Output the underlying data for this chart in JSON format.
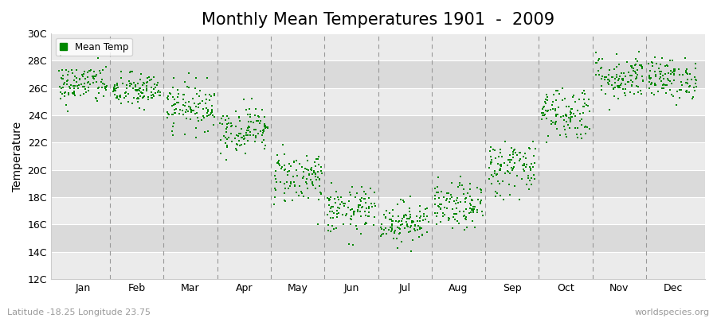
{
  "title": "Monthly Mean Temperatures 1901  -  2009",
  "ylabel": "Temperature",
  "subtitle_left": "Latitude -18.25 Longitude 23.75",
  "subtitle_right": "worldspecies.org",
  "ytick_labels": [
    "12C",
    "14C",
    "16C",
    "18C",
    "20C",
    "22C",
    "24C",
    "26C",
    "28C",
    "30C"
  ],
  "ytick_values": [
    12,
    14,
    16,
    18,
    20,
    22,
    24,
    26,
    28,
    30
  ],
  "ylim": [
    12,
    30
  ],
  "months": [
    "Jan",
    "Feb",
    "Mar",
    "Apr",
    "May",
    "Jun",
    "Jul",
    "Aug",
    "Sep",
    "Oct",
    "Nov",
    "Dec"
  ],
  "monthly_means": [
    26.3,
    25.8,
    24.7,
    23.0,
    19.5,
    17.0,
    16.2,
    17.3,
    20.2,
    24.2,
    26.8,
    26.7
  ],
  "monthly_stds": [
    0.75,
    0.65,
    0.85,
    0.85,
    1.0,
    0.85,
    0.75,
    0.85,
    1.05,
    1.0,
    0.85,
    0.75
  ],
  "n_years": 109,
  "dot_color": "#008800",
  "dot_size": 3,
  "background_color": "#ffffff",
  "plot_bg_light": "#ebebeb",
  "plot_bg_dark": "#dadada",
  "grid_line_color": "#ffffff",
  "dashed_line_color": "#999999",
  "legend_label": "Mean Temp",
  "title_fontsize": 15,
  "axis_label_fontsize": 10,
  "tick_fontsize": 9,
  "subtitle_fontsize": 8,
  "seed": 42
}
